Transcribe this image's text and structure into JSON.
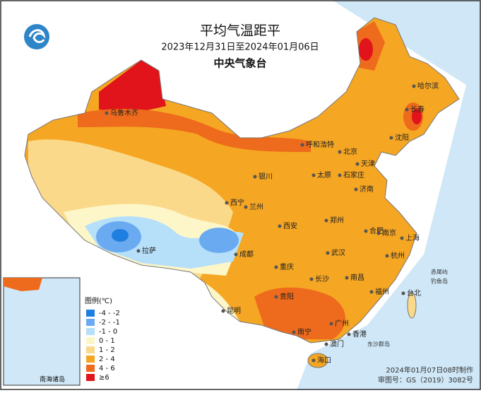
{
  "header": {
    "title": "平均气温距平",
    "subtitle": "2023年12月31日至2024年01月06日",
    "agency": "中央气象台"
  },
  "legend": {
    "title": "图例(℃)",
    "items": [
      {
        "label": "-4 - -2",
        "color": "#1f7fe0"
      },
      {
        "label": "-2 - -1",
        "color": "#6aaaf0"
      },
      {
        "label": "-1 - 0",
        "color": "#b6e0fa"
      },
      {
        "label": "0 - 1",
        "color": "#fdf6c8"
      },
      {
        "label": "1 - 2",
        "color": "#fbd98a"
      },
      {
        "label": "2 - 4",
        "color": "#f5a623"
      },
      {
        "label": "4 - 6",
        "color": "#ee6a1c"
      },
      {
        "label": "≥6",
        "color": "#e0141a"
      }
    ]
  },
  "cities": [
    "乌鲁木齐",
    "哈尔滨",
    "长春",
    "沈阳",
    "呼和浩特",
    "北京",
    "天津",
    "石家庄",
    "太原",
    "银川",
    "济南",
    "西宁",
    "兰州",
    "郑州",
    "西安",
    "合肥",
    "南京",
    "上海",
    "拉萨",
    "成都",
    "武汉",
    "杭州",
    "重庆",
    "长沙",
    "南昌",
    "福州",
    "台北",
    "贵阳",
    "昆明",
    "南宁",
    "广州",
    "香港",
    "澳门",
    "海口"
  ],
  "islands": [
    "赤尾屿",
    "钓鱼岛",
    "东沙群岛"
  ],
  "inset_label": "南海诸岛",
  "footer": {
    "date": "2024年01月07日08时制作",
    "approval": "审图号：GS（2019）3082号"
  }
}
